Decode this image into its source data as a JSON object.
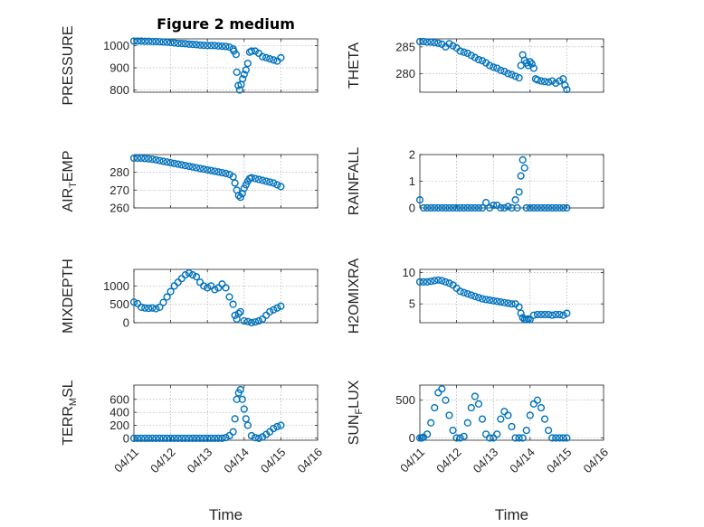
{
  "chart_data": [
    {
      "type": "scatter",
      "title": "Figure 2 medium",
      "ylabel": "PRESSURE",
      "xlabel": "",
      "xlim": [
        0,
        5
      ],
      "ylim": [
        790,
        1030
      ],
      "yticks": [
        800,
        900,
        1000
      ],
      "xticks": [
        "04/11",
        "04/12",
        "04/13",
        "04/14",
        "04/15",
        "04/16"
      ],
      "grid": true,
      "color": "#0072BD",
      "x": [
        0.0,
        0.1,
        0.2,
        0.3,
        0.4,
        0.5,
        0.6,
        0.7,
        0.8,
        0.9,
        1.0,
        1.1,
        1.2,
        1.3,
        1.4,
        1.5,
        1.6,
        1.7,
        1.8,
        1.9,
        2.0,
        2.1,
        2.2,
        2.3,
        2.4,
        2.5,
        2.6,
        2.7,
        2.72,
        2.78,
        2.8,
        2.84,
        2.88,
        2.92,
        2.96,
        3.0,
        3.05,
        3.1,
        3.15,
        3.2,
        3.3,
        3.4,
        3.5,
        3.6,
        3.7,
        3.8,
        3.9,
        4.0
      ],
      "y": [
        1020,
        1020,
        1020,
        1019,
        1019,
        1018,
        1018,
        1017,
        1016,
        1015,
        1014,
        1012,
        1010,
        1009,
        1008,
        1006,
        1005,
        1004,
        1002,
        1001,
        1000,
        1000,
        1000,
        998,
        997,
        996,
        993,
        985,
        975,
        960,
        880,
        820,
        800,
        825,
        850,
        870,
        890,
        920,
        970,
        975,
        975,
        965,
        950,
        945,
        940,
        935,
        930,
        945
      ]
    },
    {
      "type": "scatter",
      "title": "",
      "ylabel": "THETA",
      "xlabel": "",
      "xlim": [
        0,
        5
      ],
      "ylim": [
        276.5,
        286.5
      ],
      "yticks": [
        280,
        285
      ],
      "xticks": [
        "04/11",
        "04/12",
        "04/13",
        "04/14",
        "04/15",
        "04/16"
      ],
      "grid": true,
      "color": "#0072BD",
      "x": [
        0.0,
        0.1,
        0.2,
        0.3,
        0.4,
        0.5,
        0.6,
        0.7,
        0.8,
        0.9,
        1.0,
        1.1,
        1.2,
        1.3,
        1.4,
        1.5,
        1.6,
        1.7,
        1.8,
        1.9,
        2.0,
        2.1,
        2.2,
        2.3,
        2.4,
        2.5,
        2.6,
        2.7,
        2.75,
        2.8,
        2.85,
        2.9,
        2.95,
        3.0,
        3.05,
        3.1,
        3.15,
        3.2,
        3.3,
        3.4,
        3.5,
        3.6,
        3.7,
        3.8,
        3.9,
        3.95,
        4.0
      ],
      "y": [
        286.0,
        286.0,
        285.9,
        285.9,
        285.8,
        285.7,
        285.5,
        285.0,
        285.6,
        285.2,
        284.8,
        284.2,
        284.0,
        283.8,
        283.4,
        283.0,
        282.6,
        282.4,
        282.0,
        281.5,
        281.2,
        281.0,
        280.6,
        280.4,
        280.0,
        279.8,
        279.5,
        279.2,
        281.5,
        283.5,
        282.5,
        282.0,
        281.5,
        282.2,
        281.8,
        281.0,
        279.0,
        278.8,
        278.6,
        278.5,
        278.4,
        278.6,
        278.2,
        278.6,
        279.0,
        277.8,
        277.0
      ]
    },
    {
      "type": "scatter",
      "title": "",
      "ylabel": "AIR_TEMP",
      "xlabel": "",
      "xlim": [
        0,
        5
      ],
      "ylim": [
        260,
        290
      ],
      "yticks": [
        260,
        270,
        280
      ],
      "xticks": [
        "04/11",
        "04/12",
        "04/13",
        "04/14",
        "04/15",
        "04/16"
      ],
      "grid": true,
      "color": "#0072BD",
      "x": [
        0.0,
        0.1,
        0.2,
        0.3,
        0.4,
        0.5,
        0.6,
        0.7,
        0.8,
        0.9,
        1.0,
        1.1,
        1.2,
        1.3,
        1.4,
        1.5,
        1.6,
        1.7,
        1.8,
        1.9,
        2.0,
        2.1,
        2.2,
        2.3,
        2.4,
        2.5,
        2.6,
        2.7,
        2.75,
        2.8,
        2.85,
        2.9,
        2.95,
        3.0,
        3.05,
        3.1,
        3.15,
        3.2,
        3.3,
        3.4,
        3.5,
        3.6,
        3.7,
        3.8,
        3.9,
        4.0
      ],
      "y": [
        288.0,
        288.0,
        288.0,
        287.8,
        287.6,
        287.4,
        287.0,
        286.6,
        286.2,
        285.8,
        285.4,
        285.0,
        284.6,
        284.2,
        283.8,
        283.4,
        283.0,
        282.6,
        282.2,
        281.8,
        281.4,
        281.0,
        280.6,
        280.2,
        279.8,
        279.4,
        278.8,
        277.5,
        274.0,
        270.0,
        267.0,
        266.0,
        268.0,
        271.0,
        273.0,
        275.0,
        276.5,
        277.0,
        276.5,
        276.0,
        275.5,
        275.0,
        274.5,
        274.0,
        273.0,
        272.0
      ]
    },
    {
      "type": "scatter",
      "title": "",
      "ylabel": "RAINFALL",
      "xlabel": "",
      "xlim": [
        0,
        5
      ],
      "ylim": [
        0,
        2
      ],
      "yticks": [
        0,
        1,
        2
      ],
      "xticks": [
        "04/11",
        "04/12",
        "04/13",
        "04/14",
        "04/15",
        "04/16"
      ],
      "grid": true,
      "color": "#0072BD",
      "x": [
        0.0,
        0.1,
        0.2,
        0.3,
        0.4,
        0.5,
        0.6,
        0.7,
        0.8,
        0.9,
        1.0,
        1.1,
        1.2,
        1.3,
        1.4,
        1.5,
        1.6,
        1.7,
        1.8,
        1.9,
        2.0,
        2.1,
        2.2,
        2.3,
        2.4,
        2.5,
        2.6,
        2.65,
        2.7,
        2.75,
        2.8,
        2.85,
        2.9,
        3.0,
        3.1,
        3.2,
        3.3,
        3.4,
        3.5,
        3.6,
        3.7,
        3.8,
        3.9,
        4.0
      ],
      "y": [
        0.3,
        0.0,
        0.0,
        0.0,
        0.0,
        0.0,
        0.0,
        0.0,
        0.0,
        0.0,
        0.0,
        0.0,
        0.0,
        0.0,
        0.0,
        0.0,
        0.0,
        0.0,
        0.2,
        0.0,
        0.1,
        0.1,
        0.0,
        0.0,
        0.05,
        0.0,
        0.3,
        0.0,
        0.6,
        1.2,
        1.8,
        1.5,
        0.0,
        0.0,
        0.0,
        0.0,
        0.0,
        0.0,
        0.0,
        0.0,
        0.0,
        0.0,
        0.0,
        0.0
      ]
    },
    {
      "type": "scatter",
      "title": "",
      "ylabel": "MIXDEPTH",
      "xlabel": "",
      "xlim": [
        0,
        5
      ],
      "ylim": [
        0,
        1450
      ],
      "yticks": [
        0,
        500,
        1000
      ],
      "xticks": [
        "04/11",
        "04/12",
        "04/13",
        "04/14",
        "04/15",
        "04/16"
      ],
      "grid": true,
      "color": "#0072BD",
      "x": [
        0.0,
        0.1,
        0.2,
        0.3,
        0.4,
        0.5,
        0.6,
        0.7,
        0.8,
        0.9,
        1.0,
        1.1,
        1.2,
        1.3,
        1.4,
        1.5,
        1.6,
        1.7,
        1.8,
        1.9,
        2.0,
        2.1,
        2.2,
        2.3,
        2.4,
        2.5,
        2.6,
        2.7,
        2.75,
        2.8,
        2.85,
        2.9,
        3.0,
        3.1,
        3.2,
        3.3,
        3.4,
        3.5,
        3.6,
        3.7,
        3.8,
        3.9,
        4.0
      ],
      "y": [
        560,
        520,
        420,
        400,
        390,
        400,
        380,
        420,
        550,
        700,
        850,
        1000,
        1100,
        1200,
        1300,
        1350,
        1300,
        1250,
        1100,
        1000,
        950,
        1000,
        900,
        950,
        1050,
        950,
        700,
        500,
        200,
        100,
        250,
        300,
        50,
        30,
        0,
        20,
        50,
        100,
        200,
        300,
        350,
        400,
        450
      ]
    },
    {
      "type": "scatter",
      "title": "",
      "ylabel": "H2OMIXRA",
      "xlabel": "",
      "xlim": [
        0,
        5
      ],
      "ylim": [
        2,
        10.5
      ],
      "yticks": [
        5,
        10
      ],
      "xticks": [
        "04/11",
        "04/12",
        "04/13",
        "04/14",
        "04/15",
        "04/16"
      ],
      "grid": true,
      "color": "#0072BD",
      "x": [
        0.0,
        0.1,
        0.2,
        0.3,
        0.4,
        0.5,
        0.6,
        0.7,
        0.8,
        0.9,
        1.0,
        1.1,
        1.2,
        1.3,
        1.4,
        1.5,
        1.6,
        1.7,
        1.8,
        1.9,
        2.0,
        2.1,
        2.2,
        2.3,
        2.4,
        2.5,
        2.6,
        2.7,
        2.75,
        2.8,
        2.85,
        2.9,
        2.95,
        3.0,
        3.1,
        3.2,
        3.3,
        3.4,
        3.5,
        3.6,
        3.7,
        3.8,
        3.9,
        4.0
      ],
      "y": [
        8.5,
        8.5,
        8.5,
        8.6,
        8.7,
        8.8,
        8.7,
        8.5,
        8.3,
        8.0,
        7.5,
        7.0,
        6.8,
        6.6,
        6.4,
        6.2,
        6.0,
        5.8,
        5.7,
        5.6,
        5.5,
        5.4,
        5.3,
        5.2,
        5.1,
        5.0,
        5.0,
        4.5,
        3.5,
        2.8,
        2.5,
        2.5,
        2.6,
        2.5,
        3.2,
        3.3,
        3.3,
        3.3,
        3.3,
        3.2,
        3.3,
        3.3,
        3.2,
        3.5
      ]
    },
    {
      "type": "scatter",
      "title": "",
      "ylabel": "TERR_MSL",
      "xlabel": "Time",
      "xlim": [
        0,
        5
      ],
      "ylim": [
        -30,
        820
      ],
      "yticks": [
        0,
        200,
        400,
        600
      ],
      "xticks": [
        "04/11",
        "04/12",
        "04/13",
        "04/14",
        "04/15",
        "04/16"
      ],
      "grid": true,
      "color": "#0072BD",
      "x": [
        0.0,
        0.1,
        0.2,
        0.3,
        0.4,
        0.5,
        0.6,
        0.7,
        0.8,
        0.9,
        1.0,
        1.1,
        1.2,
        1.3,
        1.4,
        1.5,
        1.6,
        1.7,
        1.8,
        1.9,
        2.0,
        2.1,
        2.2,
        2.3,
        2.4,
        2.5,
        2.6,
        2.7,
        2.75,
        2.8,
        2.85,
        2.9,
        2.95,
        3.0,
        3.05,
        3.1,
        3.2,
        3.3,
        3.4,
        3.5,
        3.6,
        3.7,
        3.8,
        3.9,
        4.0
      ],
      "y": [
        0,
        0,
        0,
        0,
        0,
        0,
        0,
        0,
        0,
        0,
        0,
        0,
        0,
        0,
        0,
        0,
        0,
        0,
        0,
        0,
        0,
        0,
        0,
        0,
        0,
        10,
        40,
        100,
        300,
        600,
        700,
        750,
        600,
        450,
        300,
        200,
        40,
        10,
        0,
        20,
        60,
        100,
        150,
        180,
        200
      ]
    },
    {
      "type": "scatter",
      "title": "",
      "ylabel": "SUN_FLUX",
      "xlabel": "Time",
      "xlim": [
        0,
        5
      ],
      "ylim": [
        -30,
        700
      ],
      "yticks": [
        0,
        500
      ],
      "xticks": [
        "04/11",
        "04/12",
        "04/13",
        "04/14",
        "04/15",
        "04/16"
      ],
      "grid": true,
      "color": "#0072BD",
      "x": [
        0.0,
        0.05,
        0.1,
        0.2,
        0.3,
        0.4,
        0.5,
        0.6,
        0.7,
        0.8,
        0.9,
        1.0,
        1.1,
        1.2,
        1.3,
        1.4,
        1.5,
        1.6,
        1.7,
        1.8,
        1.9,
        2.0,
        2.1,
        2.2,
        2.3,
        2.4,
        2.5,
        2.6,
        2.7,
        2.8,
        2.9,
        3.0,
        3.1,
        3.2,
        3.3,
        3.4,
        3.5,
        3.6,
        3.7,
        3.8,
        3.9,
        4.0
      ],
      "y": [
        0,
        0,
        10,
        50,
        200,
        400,
        600,
        650,
        500,
        300,
        100,
        0,
        0,
        20,
        200,
        400,
        550,
        450,
        250,
        50,
        0,
        0,
        50,
        250,
        350,
        300,
        150,
        0,
        0,
        0,
        100,
        300,
        450,
        500,
        400,
        250,
        100,
        0,
        0,
        0,
        0,
        0
      ]
    }
  ]
}
